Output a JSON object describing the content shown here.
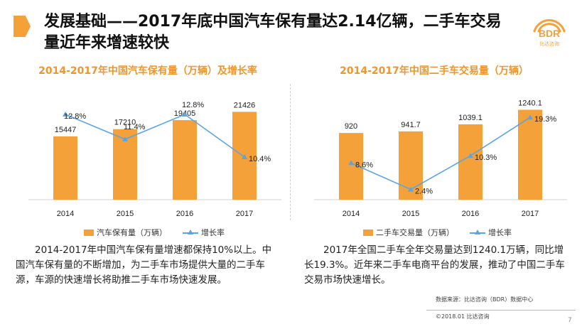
{
  "title": "发展基础——2017年底中国汽车保有量达2.14亿辆，二手车交易量近年来增速较快",
  "logo": {
    "text": "BDR",
    "subtext": "比达咨询"
  },
  "colors": {
    "bar": "#F5A13A",
    "line": "#5BA4E5",
    "accent_title": "#F0952B"
  },
  "charts": [
    {
      "title": "2014-2017年中国汽车保有量（万辆）及增长率",
      "legend_bar": "汽车保有量（万辆）",
      "legend_line": "增长率",
      "description": "2014-2017年中国汽车保有量增速都保持10%以上。中国汽车保有量的不断增加，为二手车市场提供大量的二手车源，车源的快速增长将助推二手车市场快速发展。"
    },
    {
      "title": "2014-2017年中国二手车交易量（万辆）",
      "legend_bar": "二手车交易量（万辆）",
      "legend_line": "增长率",
      "description": "2017年全国二手车全年交易量达到1240.1万辆，同比增长19.3%。近年来二手车电商平台的发展，推动了中国二手车交易市场快速增长。"
    }
  ],
  "chart_data": [
    {
      "type": "bar",
      "title": "2014-2017年中国汽车保有量（万辆）及增长率",
      "categories": [
        "2014",
        "2015",
        "2016",
        "2017"
      ],
      "series": [
        {
          "name": "汽车保有量（万辆）",
          "type": "bar",
          "values": [
            15447,
            17210,
            19405,
            21426
          ],
          "labels": [
            "15447",
            "17210",
            "19405",
            "21426"
          ]
        },
        {
          "name": "增长率",
          "type": "line",
          "values": [
            12.8,
            11.4,
            12.8,
            10.4
          ],
          "labels": [
            "12.8%",
            "11.4%",
            "12.8%",
            "10.4%"
          ]
        }
      ],
      "bar_ylim": [
        0,
        26000
      ],
      "line_ylim": [
        8,
        14
      ],
      "grid": false,
      "legend": "bottom"
    },
    {
      "type": "bar",
      "title": "2014-2017年中国二手车交易量（万辆）",
      "categories": [
        "2014",
        "2015",
        "2016",
        "2017"
      ],
      "series": [
        {
          "name": "二手车交易量（万辆）",
          "type": "bar",
          "values": [
            920,
            941.7,
            1039.1,
            1240.1
          ],
          "labels": [
            "920",
            "941.7",
            "1039.1",
            "1240.1"
          ]
        },
        {
          "name": "增长率",
          "type": "line",
          "values": [
            8.6,
            2.4,
            10.3,
            19.3
          ],
          "labels": [
            "8.6%",
            "2.4%",
            "10.3%",
            "19.3%"
          ]
        }
      ],
      "bar_ylim": [
        0,
        1470
      ],
      "line_ylim": [
        0,
        25
      ],
      "grid": false,
      "legend": "bottom"
    }
  ],
  "footer": {
    "source": "数据来源：比达咨询（BDR）数据中心",
    "copyright": "©2018.01   比达咨询",
    "page": "7"
  }
}
